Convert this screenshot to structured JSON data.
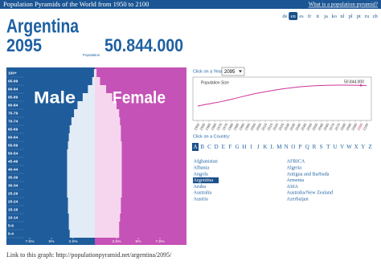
{
  "header": {
    "title": "Population Pyramids of the World from 1950 to 2100",
    "help_link": "What is a population pyramid?"
  },
  "languages": [
    {
      "label": "de",
      "selected": false
    },
    {
      "label": "en",
      "selected": true
    },
    {
      "label": "es",
      "selected": false
    },
    {
      "label": "fr",
      "selected": false
    },
    {
      "label": "it",
      "selected": false
    },
    {
      "label": "ja",
      "selected": false
    },
    {
      "label": "ko",
      "selected": false
    },
    {
      "label": "nl",
      "selected": false
    },
    {
      "label": "pl",
      "selected": false
    },
    {
      "label": "pt",
      "selected": false
    },
    {
      "label": "ru",
      "selected": false
    },
    {
      "label": "zh",
      "selected": false
    }
  ],
  "country": "Argentina",
  "year": "2095",
  "population_label": "Population",
  "population": "50.844.000",
  "link_text": "Link to this graph: http://populationpyramid.net/argentina/2095/",
  "year_prompt": "Click on a Year:",
  "country_prompt": "Click on a Country:",
  "letters": [
    {
      "label": "A",
      "selected": true
    },
    {
      "label": "B",
      "selected": false
    },
    {
      "label": "C",
      "selected": false
    },
    {
      "label": "D",
      "selected": false
    },
    {
      "label": "E",
      "selected": false
    },
    {
      "label": "F",
      "selected": false
    },
    {
      "label": "G",
      "selected": false
    },
    {
      "label": "H",
      "selected": false
    },
    {
      "label": "I",
      "selected": false
    },
    {
      "label": "J",
      "selected": false
    },
    {
      "label": "K",
      "selected": false
    },
    {
      "label": "L",
      "selected": false
    },
    {
      "label": "M",
      "selected": false
    },
    {
      "label": "N",
      "selected": false
    },
    {
      "label": "O",
      "selected": false
    },
    {
      "label": "P",
      "selected": false
    },
    {
      "label": "Q",
      "selected": false
    },
    {
      "label": "R",
      "selected": false
    },
    {
      "label": "S",
      "selected": false
    },
    {
      "label": "T",
      "selected": false
    },
    {
      "label": "U",
      "selected": false
    },
    {
      "label": "V",
      "selected": false
    },
    {
      "label": "W",
      "selected": false
    },
    {
      "label": "X",
      "selected": false
    },
    {
      "label": "Y",
      "selected": false
    },
    {
      "label": "Z",
      "selected": false
    }
  ],
  "countries_left": [
    {
      "label": "Afghanistan",
      "selected": false
    },
    {
      "label": "Albania",
      "selected": false
    },
    {
      "label": "Angola",
      "selected": false
    },
    {
      "label": "Argentina",
      "selected": true
    },
    {
      "label": "Aruba",
      "selected": false
    },
    {
      "label": "Australia",
      "selected": false
    },
    {
      "label": "Austria",
      "selected": false
    }
  ],
  "countries_right": [
    {
      "label": "AFRICA",
      "selected": false
    },
    {
      "label": "Algeria",
      "selected": false
    },
    {
      "label": "Antigua and Barbuda",
      "selected": false
    },
    {
      "label": "Armenia",
      "selected": false
    },
    {
      "label": "ASIA",
      "selected": false
    },
    {
      "label": "Australia/New Zealand",
      "selected": false
    },
    {
      "label": "Azerbaijan",
      "selected": false
    }
  ],
  "chart_data": [
    {
      "type": "pyramid",
      "categories": [
        "100+",
        "95-99",
        "90-94",
        "85-89",
        "80-84",
        "75-79",
        "70-74",
        "65-69",
        "60-64",
        "55-59",
        "50-54",
        "45-49",
        "40-44",
        "35-39",
        "30-34",
        "25-29",
        "20-24",
        "15-19",
        "10-14",
        "5-9",
        "0-4"
      ],
      "series": [
        {
          "name": "Male",
          "color": "#e2ecf6",
          "panel_color": "#1f5c9b",
          "values": [
            0.1,
            0.3,
            0.8,
            1.4,
            2.0,
            2.4,
            2.7,
            2.9,
            3.0,
            3.1,
            3.2,
            3.2,
            3.2,
            3.2,
            3.2,
            3.2,
            3.1,
            3.1,
            3.0,
            3.0,
            2.9
          ]
        },
        {
          "name": "Female",
          "color": "#f6d6ee",
          "panel_color": "#c552b6",
          "values": [
            0.2,
            0.6,
            1.3,
            2.0,
            2.5,
            2.8,
            2.9,
            3.0,
            3.0,
            3.1,
            3.1,
            3.1,
            3.1,
            3.1,
            3.1,
            3.1,
            3.0,
            3.0,
            2.9,
            2.8,
            2.8
          ]
        }
      ],
      "male_ticks": [
        {
          "value": 7.5,
          "label": "7.5%"
        },
        {
          "value": 5,
          "label": "5%"
        },
        {
          "value": 2.5,
          "label": "2.5%"
        }
      ],
      "female_ticks": [
        {
          "value": 2.5,
          "label": "2.5%"
        },
        {
          "value": 5,
          "label": "5%"
        },
        {
          "value": 7.5,
          "label": "7.5%"
        }
      ]
    },
    {
      "type": "line",
      "label": "Population Size",
      "annotation": "50.844.000",
      "color": "#cc3399",
      "x": [
        1950,
        1955,
        1960,
        1965,
        1970,
        1975,
        1980,
        1985,
        1990,
        1995,
        2000,
        2005,
        2010,
        2015,
        2020,
        2025,
        2030,
        2035,
        2040,
        2045,
        2050,
        2055,
        2060,
        2065,
        2070,
        2075,
        2080,
        2085,
        2090,
        2095,
        2100
      ],
      "values": [
        17100000,
        18900000,
        20600000,
        22300000,
        23900000,
        26000000,
        28100000,
        30300000,
        32600000,
        34800000,
        36900000,
        38700000,
        40400000,
        42000000,
        43500000,
        44900000,
        46100000,
        47200000,
        48200000,
        49000000,
        49700000,
        50200000,
        50600000,
        50900000,
        51100000,
        51200000,
        51200000,
        51100000,
        51000000,
        50844000,
        50600000
      ]
    }
  ]
}
